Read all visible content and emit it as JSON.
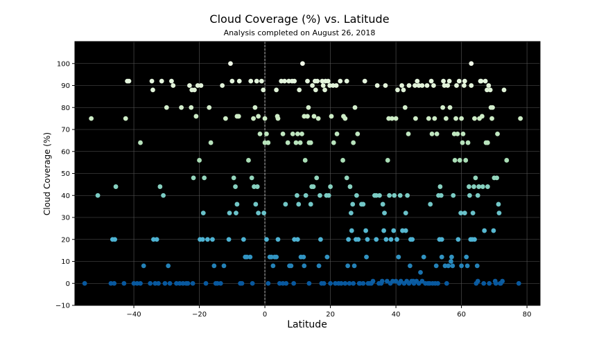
{
  "chart_data": {
    "type": "scatter",
    "title": "Cloud Coverage (%) vs. Latitude",
    "subtitle": "Analysis completed on August 26, 2018",
    "xlabel": "Latitude",
    "ylabel": "Cloud Coverage (%)",
    "xlim": [
      -58,
      84
    ],
    "ylim": [
      -10,
      110
    ],
    "xticks": [
      -40,
      -20,
      0,
      20,
      40,
      60,
      80
    ],
    "yticks": [
      -10,
      0,
      10,
      20,
      30,
      40,
      50,
      60,
      70,
      80,
      90,
      100
    ],
    "xtick_labels": [
      "−40",
      "−20",
      "0",
      "20",
      "40",
      "60",
      "80"
    ],
    "ytick_labels": [
      "−10",
      "0",
      "10",
      "20",
      "30",
      "40",
      "50",
      "60",
      "70",
      "80",
      "90",
      "100"
    ],
    "grid": true,
    "background": "#000000",
    "zero_line": true,
    "colormap": "GnBu",
    "points": [
      [
        -55,
        0
      ],
      [
        -53,
        75
      ],
      [
        -51,
        40
      ],
      [
        -47,
        0
      ],
      [
        -46.5,
        20
      ],
      [
        -46,
        0
      ],
      [
        -45.8,
        20
      ],
      [
        -45.5,
        44
      ],
      [
        -43,
        0
      ],
      [
        -42.5,
        75
      ],
      [
        -42,
        92
      ],
      [
        -41.5,
        92
      ],
      [
        -40,
        0
      ],
      [
        -39,
        0
      ],
      [
        -38,
        64
      ],
      [
        -38,
        0
      ],
      [
        -37,
        8
      ],
      [
        -35,
        0
      ],
      [
        -34.5,
        92
      ],
      [
        -34.2,
        88
      ],
      [
        -34,
        20
      ],
      [
        -33.5,
        0
      ],
      [
        -33,
        20
      ],
      [
        -32.5,
        0
      ],
      [
        -32,
        44
      ],
      [
        -31.5,
        92
      ],
      [
        -31,
        40
      ],
      [
        -30.5,
        0
      ],
      [
        -30,
        80
      ],
      [
        -29.5,
        8
      ],
      [
        -29,
        0
      ],
      [
        -28.5,
        92
      ],
      [
        -28,
        90
      ],
      [
        -27,
        0
      ],
      [
        -26,
        0
      ],
      [
        -25.5,
        80
      ],
      [
        -25,
        0
      ],
      [
        -24,
        0
      ],
      [
        -23.5,
        0
      ],
      [
        -23,
        90
      ],
      [
        -22.5,
        80
      ],
      [
        -22.3,
        88
      ],
      [
        -22,
        0
      ],
      [
        -21.8,
        48
      ],
      [
        -21.5,
        88
      ],
      [
        -21,
        76
      ],
      [
        -20.5,
        90
      ],
      [
        -20,
        56
      ],
      [
        -19.8,
        20
      ],
      [
        -19.5,
        90
      ],
      [
        -19,
        20
      ],
      [
        -18.8,
        32
      ],
      [
        -18.5,
        48
      ],
      [
        -18,
        0
      ],
      [
        -17.5,
        20
      ],
      [
        -17,
        80
      ],
      [
        -16.5,
        64
      ],
      [
        -16,
        20
      ],
      [
        -15.5,
        8
      ],
      [
        -15,
        0
      ],
      [
        -14.5,
        0
      ],
      [
        -13.5,
        0
      ],
      [
        -13,
        90
      ],
      [
        -12.5,
        8
      ],
      [
        -12,
        75
      ],
      [
        -11,
        20
      ],
      [
        -10.8,
        32
      ],
      [
        -10.5,
        100
      ],
      [
        -10,
        92
      ],
      [
        -9.5,
        48
      ],
      [
        -9,
        44
      ],
      [
        -8.8,
        32
      ],
      [
        -8.5,
        36
      ],
      [
        -8.5,
        76
      ],
      [
        -8,
        76
      ],
      [
        -7.8,
        92
      ],
      [
        -7.5,
        0
      ],
      [
        -7,
        0
      ],
      [
        -6.5,
        20
      ],
      [
        -6,
        12
      ],
      [
        -5.5,
        12
      ],
      [
        -5,
        56
      ],
      [
        -4.5,
        12
      ],
      [
        -4.3,
        92
      ],
      [
        -4,
        48
      ],
      [
        -3.8,
        0
      ],
      [
        -3.5,
        75
      ],
      [
        -3.3,
        44
      ],
      [
        -3,
        80
      ],
      [
        -2.8,
        36
      ],
      [
        -2.5,
        92
      ],
      [
        -2.3,
        44
      ],
      [
        -2,
        76
      ],
      [
        -2,
        32
      ],
      [
        -1.5,
        68
      ],
      [
        -1,
        92
      ],
      [
        -0.5,
        88
      ],
      [
        -0.3,
        32
      ],
      [
        0,
        75
      ],
      [
        0,
        64
      ],
      [
        0.5,
        68
      ],
      [
        0.5,
        20
      ],
      [
        1,
        0
      ],
      [
        1,
        64
      ],
      [
        1.5,
        12
      ],
      [
        2,
        12
      ],
      [
        2.5,
        8
      ],
      [
        3,
        12
      ],
      [
        3.5,
        12
      ],
      [
        3.5,
        88
      ],
      [
        3.8,
        76
      ],
      [
        4,
        75
      ],
      [
        4,
        20
      ],
      [
        4.5,
        0
      ],
      [
        5,
        92
      ],
      [
        5.5,
        68
      ],
      [
        5.5,
        0
      ],
      [
        6,
        92
      ],
      [
        6.3,
        36
      ],
      [
        6.5,
        0
      ],
      [
        7,
        64
      ],
      [
        7.3,
        92
      ],
      [
        7.5,
        8
      ],
      [
        8,
        8
      ],
      [
        8.3,
        92
      ],
      [
        8.5,
        68
      ],
      [
        8.8,
        0
      ],
      [
        9,
        20
      ],
      [
        9,
        92
      ],
      [
        9.5,
        64
      ],
      [
        9.8,
        40
      ],
      [
        10,
        68
      ],
      [
        10,
        20
      ],
      [
        10.3,
        36
      ],
      [
        10.5,
        88
      ],
      [
        10.8,
        64
      ],
      [
        11,
        12
      ],
      [
        11.3,
        68
      ],
      [
        11.5,
        100
      ],
      [
        11.8,
        12
      ],
      [
        12,
        76
      ],
      [
        12,
        8
      ],
      [
        12.3,
        56
      ],
      [
        12.5,
        40
      ],
      [
        13,
        92
      ],
      [
        13,
        76
      ],
      [
        13.3,
        80
      ],
      [
        13.5,
        64
      ],
      [
        13.5,
        0
      ],
      [
        14,
        36
      ],
      [
        14,
        64
      ],
      [
        14.3,
        44
      ],
      [
        14.5,
        90
      ],
      [
        14.8,
        44
      ],
      [
        15,
        76
      ],
      [
        15.3,
        92
      ],
      [
        15.5,
        88
      ],
      [
        15.8,
        48
      ],
      [
        16,
        92
      ],
      [
        16.3,
        75
      ],
      [
        16.5,
        8
      ],
      [
        16.8,
        40
      ],
      [
        17,
        20
      ],
      [
        17.3,
        0
      ],
      [
        17.5,
        92
      ],
      [
        17.8,
        90
      ],
      [
        18,
        0
      ],
      [
        18.3,
        88
      ],
      [
        18.5,
        92
      ],
      [
        18.8,
        40
      ],
      [
        19,
        12
      ],
      [
        19.3,
        92
      ],
      [
        19.5,
        40
      ],
      [
        19.8,
        90
      ],
      [
        20,
        44
      ],
      [
        20,
        0
      ],
      [
        20.3,
        76
      ],
      [
        20.8,
        90
      ],
      [
        21,
        64
      ],
      [
        21.5,
        0
      ],
      [
        21.8,
        90
      ],
      [
        22,
        68
      ],
      [
        22.5,
        0
      ],
      [
        23,
        92
      ],
      [
        23.3,
        0
      ],
      [
        23.8,
        56
      ],
      [
        24,
        76
      ],
      [
        24.5,
        75
      ],
      [
        24.5,
        0
      ],
      [
        25,
        92
      ],
      [
        25,
        48
      ],
      [
        25.3,
        8
      ],
      [
        25.5,
        20
      ],
      [
        25.8,
        0
      ],
      [
        26,
        44
      ],
      [
        26.3,
        32
      ],
      [
        26.5,
        24
      ],
      [
        26.8,
        36
      ],
      [
        27,
        64
      ],
      [
        27,
        0
      ],
      [
        27.3,
        8
      ],
      [
        27.5,
        80
      ],
      [
        27.8,
        20
      ],
      [
        28,
        40
      ],
      [
        28.3,
        68
      ],
      [
        28.5,
        20
      ],
      [
        28.8,
        0
      ],
      [
        29,
        0
      ],
      [
        29.5,
        36
      ],
      [
        30,
        36
      ],
      [
        30,
        0
      ],
      [
        30.5,
        92
      ],
      [
        30.8,
        24
      ],
      [
        31,
        12
      ],
      [
        31.3,
        20
      ],
      [
        31.5,
        0
      ],
      [
        32,
        0
      ],
      [
        32.5,
        0
      ],
      [
        33,
        1
      ],
      [
        33.5,
        40
      ],
      [
        34,
        20
      ],
      [
        34,
        40
      ],
      [
        34.3,
        90
      ],
      [
        34.8,
        0
      ],
      [
        35,
        40
      ],
      [
        35.5,
        0
      ],
      [
        35.8,
        1
      ],
      [
        36,
        36
      ],
      [
        36.3,
        24
      ],
      [
        36.5,
        32
      ],
      [
        36.8,
        90
      ],
      [
        37,
        20
      ],
      [
        37.3,
        1
      ],
      [
        37.5,
        56
      ],
      [
        37.8,
        75
      ],
      [
        38,
        40
      ],
      [
        38.3,
        0
      ],
      [
        38.5,
        20
      ],
      [
        38.8,
        75
      ],
      [
        39,
        1
      ],
      [
        39.3,
        24
      ],
      [
        39.5,
        40
      ],
      [
        40,
        75
      ],
      [
        40,
        1
      ],
      [
        40.3,
        20
      ],
      [
        40.5,
        88
      ],
      [
        40.8,
        12
      ],
      [
        41,
        0
      ],
      [
        41.3,
        40
      ],
      [
        41.5,
        1
      ],
      [
        41.8,
        90
      ],
      [
        42,
        24
      ],
      [
        42.3,
        88
      ],
      [
        42.5,
        0
      ],
      [
        42.8,
        80
      ],
      [
        43,
        24
      ],
      [
        43,
        32
      ],
      [
        43.3,
        1
      ],
      [
        43.5,
        40
      ],
      [
        43.8,
        68
      ],
      [
        44,
        90
      ],
      [
        44,
        0
      ],
      [
        44.3,
        8
      ],
      [
        44.5,
        20
      ],
      [
        44.8,
        1
      ],
      [
        45,
        20
      ],
      [
        45.3,
        1
      ],
      [
        45.5,
        0
      ],
      [
        45.8,
        90
      ],
      [
        46,
        75
      ],
      [
        46.3,
        1
      ],
      [
        46.5,
        92
      ],
      [
        47,
        90
      ],
      [
        47,
        0
      ],
      [
        47.5,
        5
      ],
      [
        48,
        1
      ],
      [
        48,
        90
      ],
      [
        48.5,
        12
      ],
      [
        49,
        0
      ],
      [
        49.5,
        90
      ],
      [
        49.8,
        0
      ],
      [
        50,
        75
      ],
      [
        50.3,
        0
      ],
      [
        50.5,
        36
      ],
      [
        50.8,
        92
      ],
      [
        51,
        68
      ],
      [
        51.2,
        0
      ],
      [
        51.5,
        90
      ],
      [
        51.8,
        75
      ],
      [
        52,
        0
      ],
      [
        52.3,
        8
      ],
      [
        52.5,
        68
      ],
      [
        52.8,
        0
      ],
      [
        53,
        40
      ],
      [
        53.3,
        20
      ],
      [
        53.5,
        44
      ],
      [
        53.8,
        40
      ],
      [
        54,
        20
      ],
      [
        54,
        12
      ],
      [
        54.3,
        80
      ],
      [
        54.5,
        92
      ],
      [
        54.8,
        90
      ],
      [
        55,
        8
      ],
      [
        55.3,
        75
      ],
      [
        55.5,
        0
      ],
      [
        55.8,
        90
      ],
      [
        56,
        8
      ],
      [
        56.3,
        92
      ],
      [
        56.5,
        80
      ],
      [
        56.8,
        10
      ],
      [
        57,
        12
      ],
      [
        57.3,
        8
      ],
      [
        57.5,
        40
      ],
      [
        57.8,
        68
      ],
      [
        58,
        56
      ],
      [
        58.3,
        75
      ],
      [
        58.5,
        90
      ],
      [
        58.8,
        68
      ],
      [
        59,
        20
      ],
      [
        59.3,
        92
      ],
      [
        59.5,
        56
      ],
      [
        59.8,
        32
      ],
      [
        60,
        75
      ],
      [
        60,
        8
      ],
      [
        60.3,
        64
      ],
      [
        60.5,
        68
      ],
      [
        60.8,
        90
      ],
      [
        61,
        92
      ],
      [
        61,
        32
      ],
      [
        61.3,
        56
      ],
      [
        61.5,
        12
      ],
      [
        61.8,
        8
      ],
      [
        62,
        64
      ],
      [
        62.3,
        44
      ],
      [
        62.5,
        40
      ],
      [
        62.8,
        20
      ],
      [
        63,
        90
      ],
      [
        63,
        100
      ],
      [
        63.3,
        20
      ],
      [
        63.5,
        32
      ],
      [
        63.8,
        44
      ],
      [
        64,
        75
      ],
      [
        64,
        20
      ],
      [
        64.3,
        48
      ],
      [
        64.5,
        0
      ],
      [
        64.8,
        8
      ],
      [
        65,
        40
      ],
      [
        65,
        1
      ],
      [
        65.3,
        44
      ],
      [
        65.5,
        75
      ],
      [
        65.8,
        92
      ],
      [
        66,
        92
      ],
      [
        66.3,
        76
      ],
      [
        66.5,
        44
      ],
      [
        66.8,
        0
      ],
      [
        67,
        24
      ],
      [
        67.3,
        92
      ],
      [
        67.5,
        64
      ],
      [
        67.8,
        88
      ],
      [
        68,
        44
      ],
      [
        68,
        64
      ],
      [
        68.3,
        90
      ],
      [
        68.5,
        0
      ],
      [
        68.8,
        88
      ],
      [
        69,
        80
      ],
      [
        69.3,
        75
      ],
      [
        69.5,
        80
      ],
      [
        69.8,
        24
      ],
      [
        70,
        48
      ],
      [
        70.3,
        1
      ],
      [
        70.5,
        0
      ],
      [
        70.8,
        48
      ],
      [
        71,
        68
      ],
      [
        71.3,
        36
      ],
      [
        71.5,
        32
      ],
      [
        71.8,
        0
      ],
      [
        72,
        0
      ],
      [
        72.5,
        1
      ],
      [
        73,
        88
      ],
      [
        73.8,
        56
      ],
      [
        77.5,
        0
      ],
      [
        78,
        75
      ]
    ]
  }
}
